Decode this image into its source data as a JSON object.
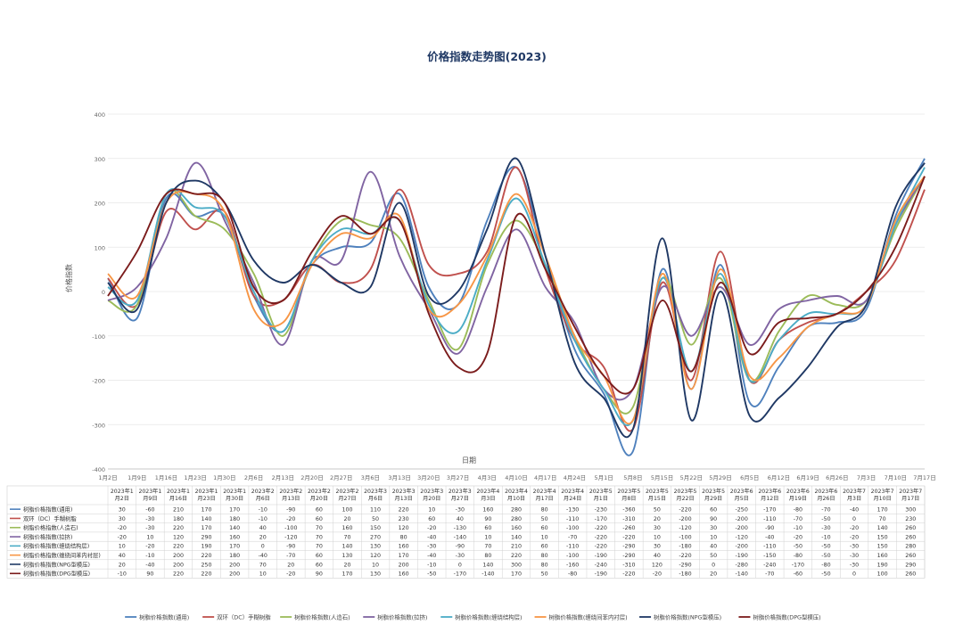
{
  "chart_data": {
    "type": "line",
    "title": "价格指数走势图(2023)",
    "xlabel": "日期",
    "ylabel": "价格指数",
    "ylim": [
      -400,
      400
    ],
    "yticks": [
      -400,
      -300,
      -200,
      -100,
      0,
      100,
      200,
      300,
      400
    ],
    "categories": [
      "1月2日",
      "1月9日",
      "1月16日",
      "1月23日",
      "1月30日",
      "2月6日",
      "2月13日",
      "2月20日",
      "2月27日",
      "3月6日",
      "3月13日",
      "3月20日",
      "3月27日",
      "4月3日",
      "4月10日",
      "4月17日",
      "4月24日",
      "5月1日",
      "5月8日",
      "5月15日",
      "5月22日",
      "5月29日",
      "6月5日",
      "6月12日",
      "6月19日",
      "6月26日",
      "7月3日",
      "7月10日",
      "7月17日"
    ],
    "axis_labels": [
      "1月2日",
      "1月9日",
      "1月16日",
      "1月23日",
      "1月30日",
      "2月6日",
      "2月13日",
      "2月20日",
      "2月27日",
      "3月6日",
      "3月13日",
      "3月20日",
      "3月27日",
      "4月3日",
      "4月10日",
      "4月17日",
      "4月24日",
      "5月1日",
      "5月8日",
      "5月15日",
      "5月22日",
      "5月29日",
      "6月5日",
      "6月12日",
      "6月19日",
      "6月26日",
      "7月3日",
      "7月10日",
      "7月17日"
    ],
    "table_headers": [
      "2023年1月2日",
      "2023年1月9日",
      "2023年1月16日",
      "2023年1月23日",
      "2023年1月30日",
      "2023年2月6日",
      "2023年2月13日",
      "2023年2月20日",
      "2023年2月27日",
      "2023年3月6日",
      "2023年3月13日",
      "2023年3月20日",
      "2023年3月27日",
      "2023年4月3日",
      "2023年4月10日",
      "2023年4月17日",
      "2023年4月24日",
      "2023年5月1日",
      "2023年5月8日",
      "2023年5月15日",
      "2023年5月22日",
      "2023年5月29日",
      "2023年6月5日",
      "2023年6月12日",
      "2023年6月19日",
      "2023年6月26日",
      "2023年7月3日",
      "2023年7月10日",
      "2023年7月17日"
    ],
    "series": [
      {
        "name": "树脂价格指数(通用)",
        "color": "#4f81bd",
        "values": [
          30,
          -60,
          210,
          170,
          170,
          -10,
          -90,
          60,
          100,
          110,
          220,
          10,
          -30,
          160,
          280,
          80,
          -130,
          -230,
          -360,
          50,
          -220,
          60,
          -250,
          -170,
          -80,
          -70,
          -40,
          170,
          300
        ]
      },
      {
        "name": "双环（DC）手糊树脂",
        "color": "#c0504d",
        "values": [
          30,
          -30,
          180,
          140,
          180,
          -10,
          -20,
          60,
          20,
          50,
          230,
          60,
          40,
          90,
          280,
          50,
          -110,
          -170,
          -310,
          20,
          -200,
          90,
          -200,
          -110,
          -70,
          -50,
          0,
          70,
          230
        ]
      },
      {
        "name": "树脂价格指数(人造石)",
        "color": "#9bbb59",
        "values": [
          -20,
          -30,
          220,
          170,
          140,
          40,
          -100,
          70,
          160,
          150,
          120,
          -20,
          -130,
          60,
          160,
          60,
          -100,
          -220,
          -260,
          30,
          -120,
          30,
          -200,
          -90,
          -10,
          -30,
          -20,
          140,
          260
        ]
      },
      {
        "name": "树脂价格指数(拉挤)",
        "color": "#8064a2",
        "values": [
          -20,
          10,
          120,
          290,
          160,
          20,
          -120,
          70,
          70,
          270,
          80,
          -40,
          -140,
          10,
          140,
          10,
          -70,
          -220,
          -220,
          10,
          -100,
          10,
          -120,
          -40,
          -20,
          -10,
          -20,
          150,
          260
        ]
      },
      {
        "name": "树脂价格指数(缠绕结构层)",
        "color": "#4bacc6",
        "values": [
          10,
          -20,
          220,
          190,
          170,
          0,
          -90,
          70,
          140,
          130,
          160,
          -30,
          -90,
          70,
          210,
          60,
          -110,
          -220,
          -290,
          30,
          -180,
          40,
          -200,
          -110,
          -50,
          -50,
          -30,
          150,
          280
        ]
      },
      {
        "name": "树脂价格指数(缠绕间苯内衬层)",
        "color": "#f79646",
        "values": [
          40,
          -10,
          200,
          220,
          180,
          -40,
          -70,
          60,
          130,
          120,
          170,
          -40,
          -30,
          80,
          220,
          80,
          -100,
          -190,
          -290,
          40,
          -220,
          50,
          -190,
          -150,
          -80,
          -50,
          -30,
          160,
          260
        ]
      },
      {
        "name": "树脂价格指数(NPG型模压)",
        "color": "#1f3864",
        "values": [
          20,
          -40,
          200,
          250,
          200,
          70,
          20,
          60,
          20,
          10,
          200,
          -10,
          0,
          140,
          300,
          80,
          -160,
          -240,
          -310,
          120,
          -290,
          0,
          -280,
          -240,
          -170,
          -80,
          -30,
          190,
          290
        ]
      },
      {
        "name": "树脂价格指数(DPG型模压)",
        "color": "#7b1c1c",
        "values": [
          -10,
          90,
          220,
          220,
          200,
          10,
          -20,
          90,
          170,
          130,
          160,
          -50,
          -170,
          -140,
          170,
          50,
          -80,
          -190,
          -220,
          -20,
          -180,
          20,
          -140,
          -70,
          -60,
          -50,
          0,
          100,
          260
        ]
      }
    ]
  }
}
